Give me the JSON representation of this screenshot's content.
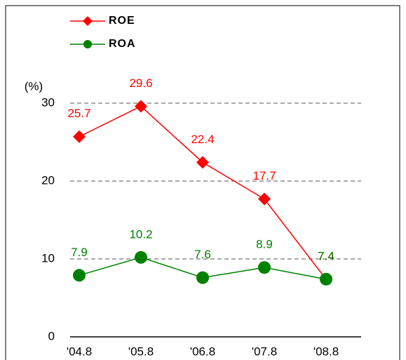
{
  "chart_data": {
    "type": "line",
    "y_label": "(%)",
    "categories": [
      "'04.8",
      "'05.8",
      "'06.8",
      "'07.8",
      "'08.8"
    ],
    "series": [
      {
        "name": "ROE",
        "color": "#ff0000",
        "marker": "diamond",
        "values": [
          25.7,
          29.6,
          22.4,
          17.7,
          7.4
        ]
      },
      {
        "name": "ROA",
        "color": "#008000",
        "marker": "circle",
        "values": [
          7.9,
          10.2,
          7.6,
          8.9,
          7.4
        ]
      }
    ],
    "ylim": [
      0,
      30
    ],
    "yticks": [
      0,
      10,
      20,
      30
    ],
    "grid": true,
    "legend": "top-left"
  }
}
